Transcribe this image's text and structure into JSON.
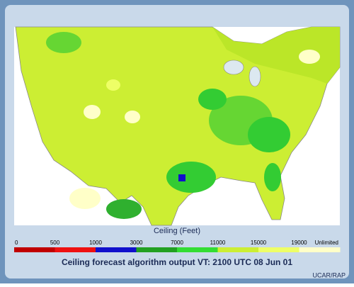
{
  "legend": {
    "label": "Ceiling (Feet)",
    "ticks": [
      "0",
      "500",
      "1000",
      "3000",
      "7000",
      "11000",
      "15000",
      "19000",
      "Unlimited"
    ],
    "colors": [
      "#c00000",
      "#ee1111",
      "#1010cc",
      "#22a022",
      "#33dd33",
      "#ccee33",
      "#eeff66",
      "#ffffc8"
    ]
  },
  "caption": "Ceiling forecast algorithm output VT: 2100 UTC 08 Jun 01",
  "credit": "UCAR/RAP"
}
